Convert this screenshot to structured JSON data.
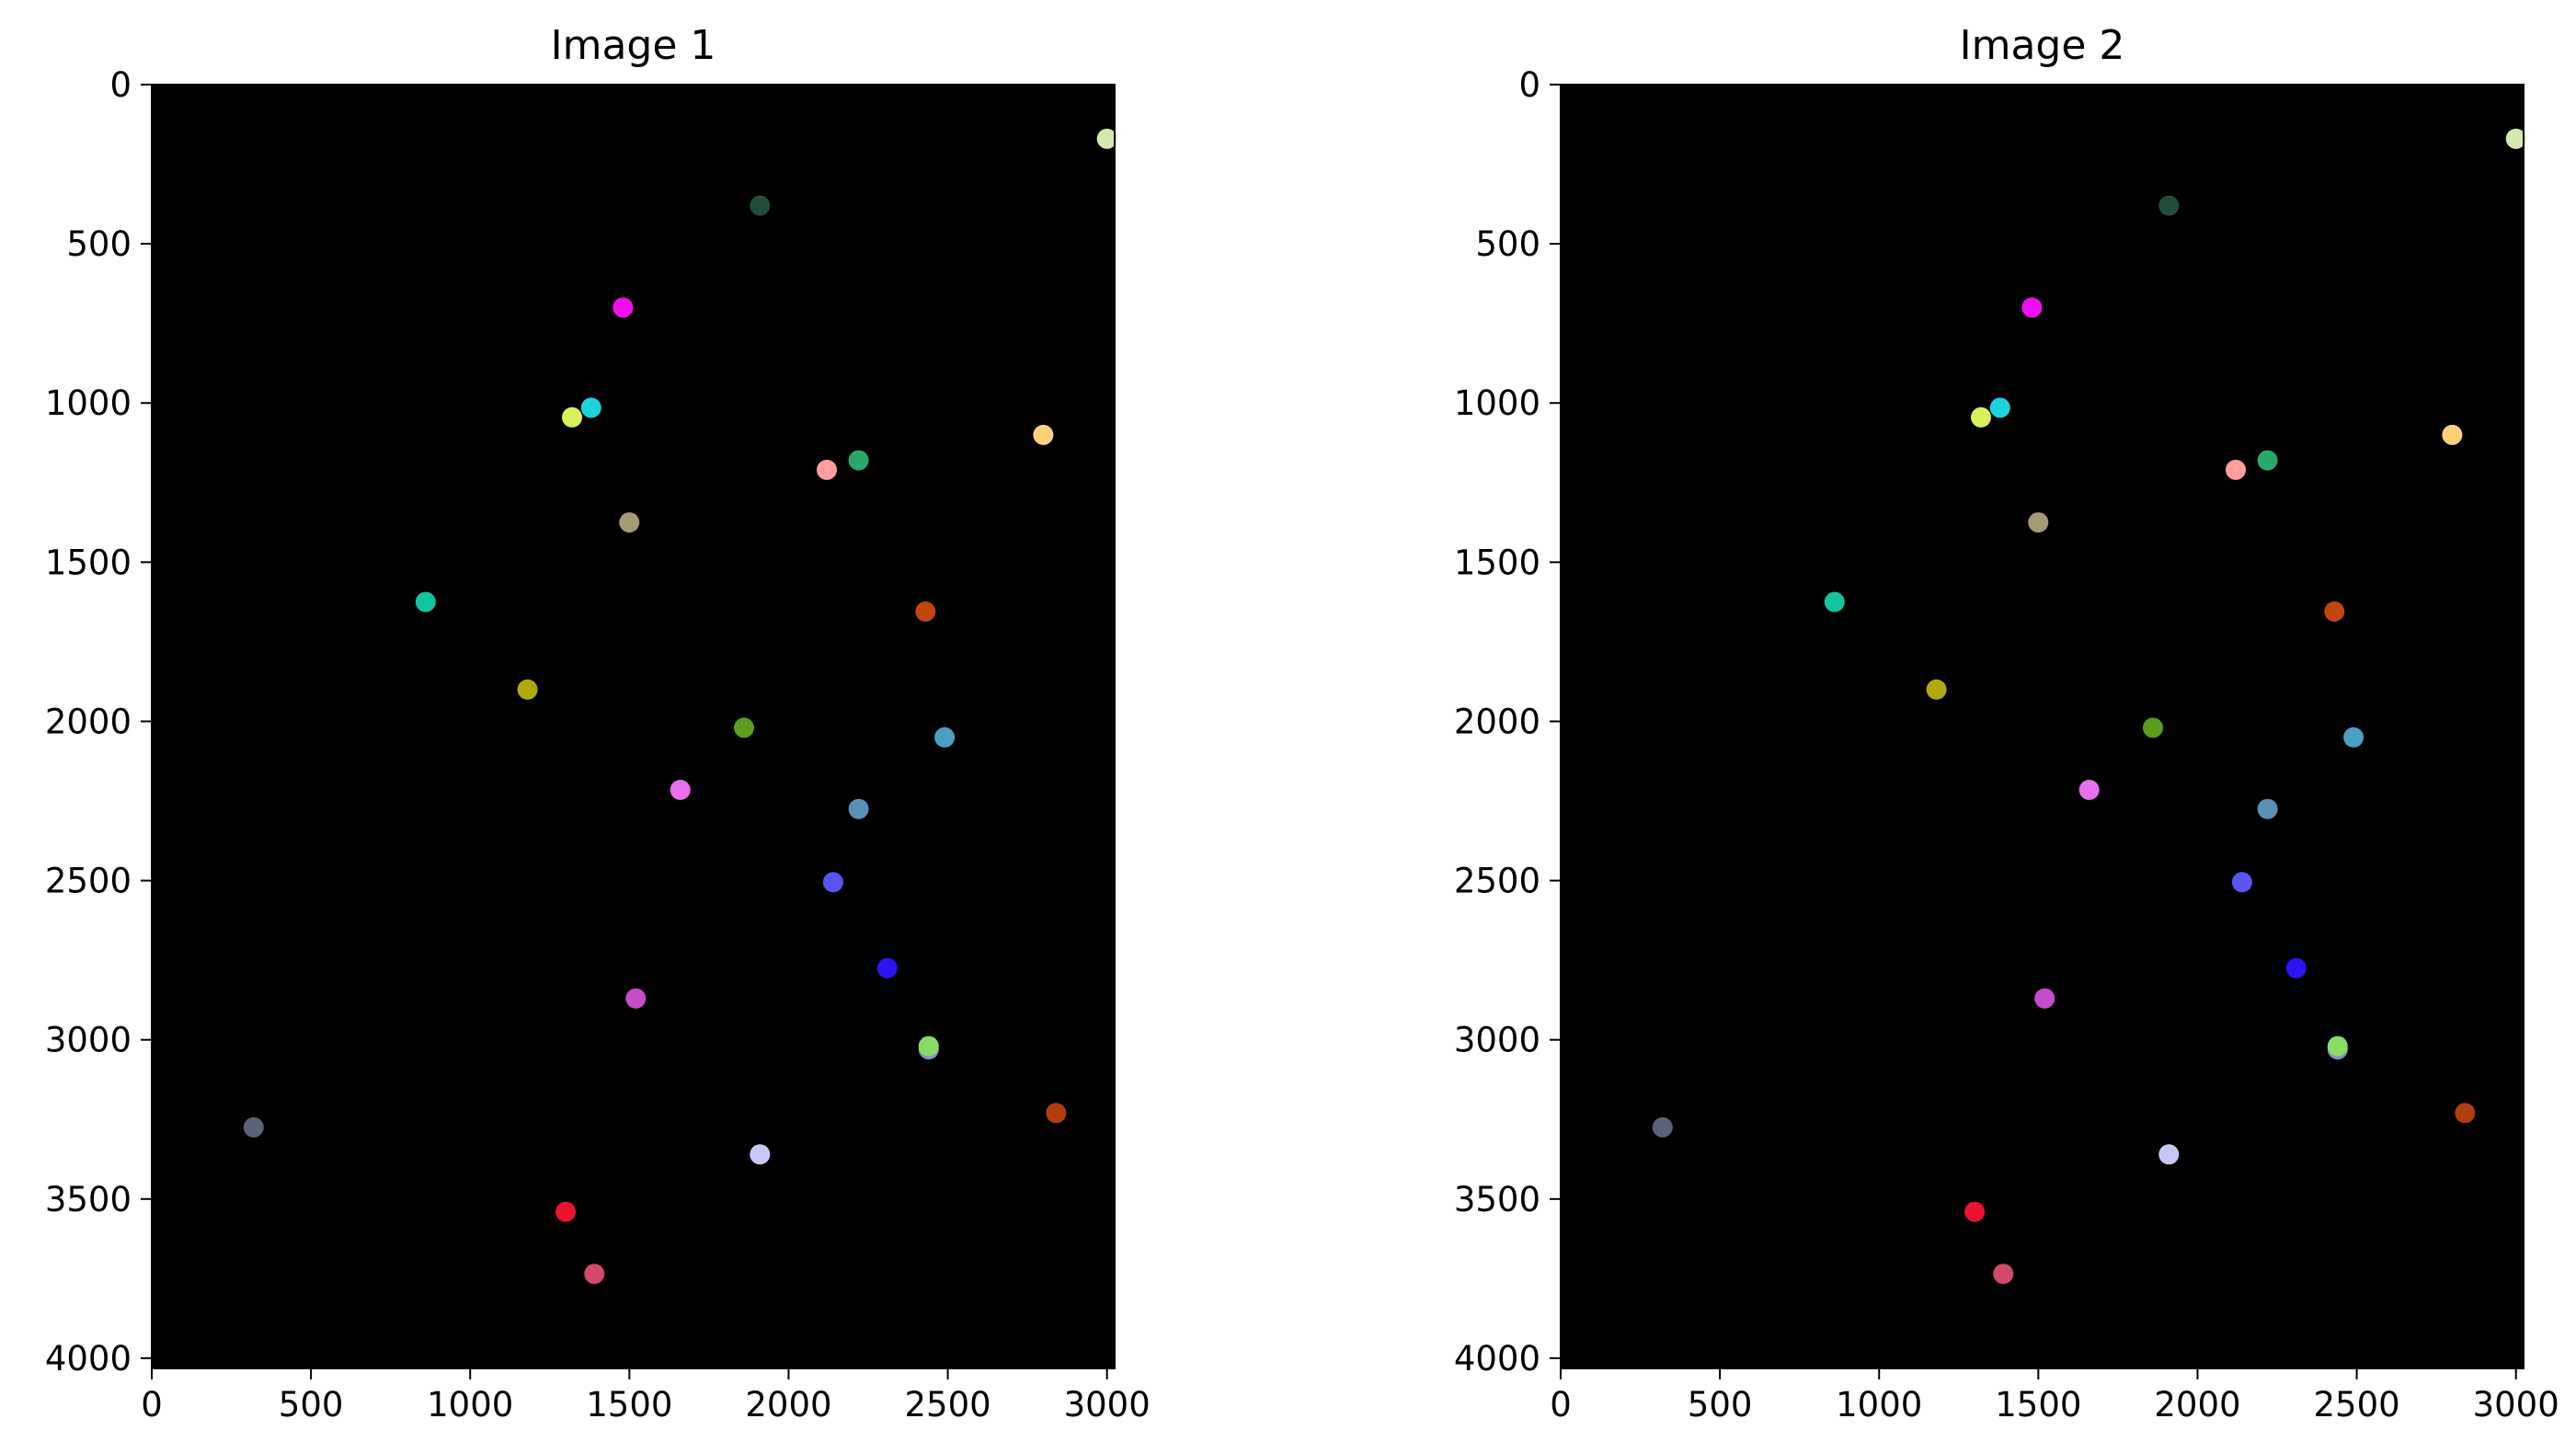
{
  "chart_data": [
    {
      "type": "scatter",
      "title": "Image 1",
      "xlabel": "",
      "ylabel": "",
      "xlim": [
        0,
        3024
      ],
      "ylim": [
        4032,
        0
      ],
      "y_inverted": true,
      "background": "#000000",
      "grid": false,
      "xticks": [
        "0",
        "500",
        "1000",
        "1500",
        "2000",
        "2500",
        "3000"
      ],
      "yticks": [
        "0",
        "500",
        "1000",
        "1500",
        "2000",
        "2500",
        "3000",
        "3500",
        "4000"
      ],
      "points": [
        {
          "x": 3000,
          "y": 170,
          "color": "#d4e8b0"
        },
        {
          "x": 1910,
          "y": 380,
          "color": "#1f4f3a"
        },
        {
          "x": 1480,
          "y": 700,
          "color": "#f20ef2"
        },
        {
          "x": 1380,
          "y": 1015,
          "color": "#1ed4dc"
        },
        {
          "x": 1320,
          "y": 1045,
          "color": "#d9f05a"
        },
        {
          "x": 2800,
          "y": 1100,
          "color": "#ffd27a"
        },
        {
          "x": 2220,
          "y": 1180,
          "color": "#2aa86a"
        },
        {
          "x": 2120,
          "y": 1210,
          "color": "#ff9e9e"
        },
        {
          "x": 1500,
          "y": 1375,
          "color": "#a39a76"
        },
        {
          "x": 860,
          "y": 1625,
          "color": "#13c4a0"
        },
        {
          "x": 2430,
          "y": 1655,
          "color": "#c0460e"
        },
        {
          "x": 1180,
          "y": 1900,
          "color": "#b0aa12"
        },
        {
          "x": 1860,
          "y": 2020,
          "color": "#5a9e1e"
        },
        {
          "x": 2490,
          "y": 2050,
          "color": "#4aa0c0"
        },
        {
          "x": 1660,
          "y": 2215,
          "color": "#e870ec"
        },
        {
          "x": 2220,
          "y": 2275,
          "color": "#5a8fb8"
        },
        {
          "x": 2140,
          "y": 2505,
          "color": "#5a55f0"
        },
        {
          "x": 2310,
          "y": 2775,
          "color": "#2a14f0"
        },
        {
          "x": 1520,
          "y": 2870,
          "color": "#c44cc8"
        },
        {
          "x": 2440,
          "y": 3030,
          "color": "#7f94c8"
        },
        {
          "x": 2440,
          "y": 3020,
          "color": "#88dd66"
        },
        {
          "x": 2840,
          "y": 3230,
          "color": "#b03c10"
        },
        {
          "x": 320,
          "y": 3275,
          "color": "#5c6078"
        },
        {
          "x": 1910,
          "y": 3360,
          "color": "#c8c8f8"
        },
        {
          "x": 1300,
          "y": 3540,
          "color": "#e81430"
        },
        {
          "x": 1390,
          "y": 3735,
          "color": "#d4486a"
        }
      ]
    },
    {
      "type": "scatter",
      "title": "Image 2",
      "xlabel": "",
      "ylabel": "",
      "xlim": [
        0,
        3024
      ],
      "ylim": [
        4032,
        0
      ],
      "y_inverted": true,
      "background": "#000000",
      "grid": false,
      "xticks": [
        "0",
        "500",
        "1000",
        "1500",
        "2000",
        "2500",
        "3000"
      ],
      "yticks": [
        "0",
        "500",
        "1000",
        "1500",
        "2000",
        "2500",
        "3000",
        "3500",
        "4000"
      ],
      "points": [
        {
          "x": 3000,
          "y": 170,
          "color": "#d4e8b0"
        },
        {
          "x": 1910,
          "y": 380,
          "color": "#1f4f3a"
        },
        {
          "x": 1480,
          "y": 700,
          "color": "#f20ef2"
        },
        {
          "x": 1380,
          "y": 1015,
          "color": "#1ed4dc"
        },
        {
          "x": 1320,
          "y": 1045,
          "color": "#d9f05a"
        },
        {
          "x": 2800,
          "y": 1100,
          "color": "#ffd27a"
        },
        {
          "x": 2220,
          "y": 1180,
          "color": "#2aa86a"
        },
        {
          "x": 2120,
          "y": 1210,
          "color": "#ff9e9e"
        },
        {
          "x": 1500,
          "y": 1375,
          "color": "#a39a76"
        },
        {
          "x": 860,
          "y": 1625,
          "color": "#13c4a0"
        },
        {
          "x": 2430,
          "y": 1655,
          "color": "#c0460e"
        },
        {
          "x": 1180,
          "y": 1900,
          "color": "#b0aa12"
        },
        {
          "x": 1860,
          "y": 2020,
          "color": "#5a9e1e"
        },
        {
          "x": 2490,
          "y": 2050,
          "color": "#4aa0c0"
        },
        {
          "x": 1660,
          "y": 2215,
          "color": "#e870ec"
        },
        {
          "x": 2220,
          "y": 2275,
          "color": "#5a8fb8"
        },
        {
          "x": 2140,
          "y": 2505,
          "color": "#5a55f0"
        },
        {
          "x": 2310,
          "y": 2775,
          "color": "#2a14f0"
        },
        {
          "x": 1520,
          "y": 2870,
          "color": "#c44cc8"
        },
        {
          "x": 2440,
          "y": 3030,
          "color": "#7f94c8"
        },
        {
          "x": 2440,
          "y": 3020,
          "color": "#88dd66"
        },
        {
          "x": 2840,
          "y": 3230,
          "color": "#b03c10"
        },
        {
          "x": 320,
          "y": 3275,
          "color": "#5c6078"
        },
        {
          "x": 1910,
          "y": 3360,
          "color": "#c8c8f8"
        },
        {
          "x": 1300,
          "y": 3540,
          "color": "#e81430"
        },
        {
          "x": 1390,
          "y": 3735,
          "color": "#d4486a"
        }
      ]
    }
  ]
}
